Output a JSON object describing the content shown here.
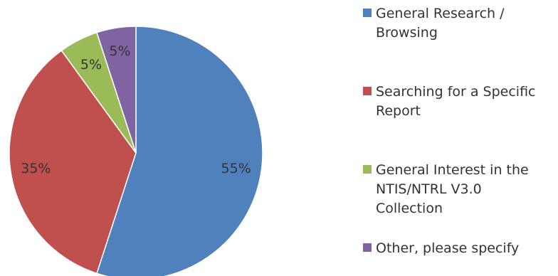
{
  "chart_data": {
    "type": "pie",
    "categories": [
      "General Research / Browsing",
      "Searching for a Specific Report",
      "General Interest in the NTIS/NTRL V3.0 Collection",
      "Other, please specify"
    ],
    "legend_text": [
      "General Research /\nBrowsing",
      "Searching for a Specific\nReport",
      "General Interest in the\nNTIS/NTRL V3.0\nCollection",
      "Other, please specify"
    ],
    "values": [
      55,
      35,
      5,
      5
    ],
    "value_labels": [
      "55%",
      "35%",
      "5%",
      "5%"
    ],
    "colors": [
      "#4F81BD",
      "#C0504D",
      "#9BBB59",
      "#8064A2"
    ],
    "legend_position": "right",
    "start_angle": "12 o'clock",
    "direction": "clockwise"
  }
}
